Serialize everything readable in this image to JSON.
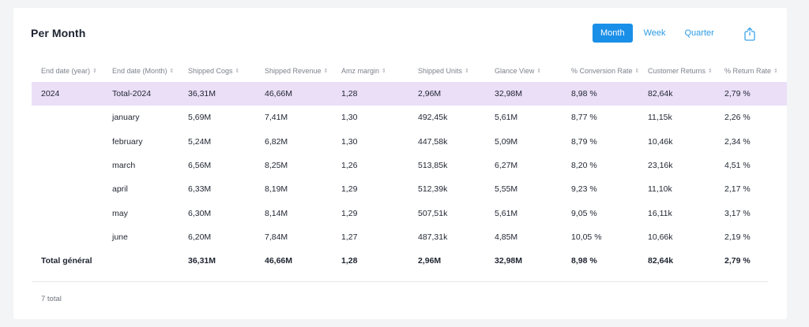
{
  "panel": {
    "title": "Per Month",
    "period_options": [
      {
        "label": "Month",
        "active": true
      },
      {
        "label": "Week",
        "active": false
      },
      {
        "label": "Quarter",
        "active": false
      }
    ],
    "export_icon": "share-export-icon",
    "accent_color": "#1a8fe8",
    "highlight_color": "#ebdff8"
  },
  "table": {
    "columns": [
      "End date (year)",
      "End date (Month)",
      "Shipped Cogs",
      "Shipped Revenue",
      "Amz margin",
      "Shipped Units",
      "Glance View",
      "% Conversion Rate",
      "Customer Returns",
      "% Return Rate"
    ],
    "rows": [
      [
        "2024",
        "Total-2024",
        "36,31M",
        "46,66M",
        "1,28",
        "2,96M",
        "32,98M",
        "8,98 %",
        "82,64k",
        "2,79 %"
      ],
      [
        "",
        "january",
        "5,69M",
        "7,41M",
        "1,30",
        "492,45k",
        "5,61M",
        "8,77 %",
        "11,15k",
        "2,26 %"
      ],
      [
        "",
        "february",
        "5,24M",
        "6,82M",
        "1,30",
        "447,58k",
        "5,09M",
        "8,79 %",
        "10,46k",
        "2,34 %"
      ],
      [
        "",
        "march",
        "6,56M",
        "8,25M",
        "1,26",
        "513,85k",
        "6,27M",
        "8,20 %",
        "23,16k",
        "4,51 %"
      ],
      [
        "",
        "april",
        "6,33M",
        "8,19M",
        "1,29",
        "512,39k",
        "5,55M",
        "9,23 %",
        "11,10k",
        "2,17 %"
      ],
      [
        "",
        "may",
        "6,30M",
        "8,14M",
        "1,29",
        "507,51k",
        "5,61M",
        "9,05 %",
        "16,11k",
        "3,17 %"
      ],
      [
        "",
        "june",
        "6,20M",
        "7,84M",
        "1,27",
        "487,31k",
        "4,85M",
        "10,05 %",
        "10,66k",
        "2,19 %"
      ]
    ],
    "grand_total": [
      "Total général",
      "",
      "36,31M",
      "46,66M",
      "1,28",
      "2,96M",
      "32,98M",
      "8,98 %",
      "82,64k",
      "2,79 %"
    ]
  },
  "footer": {
    "total_label": "7 total"
  }
}
